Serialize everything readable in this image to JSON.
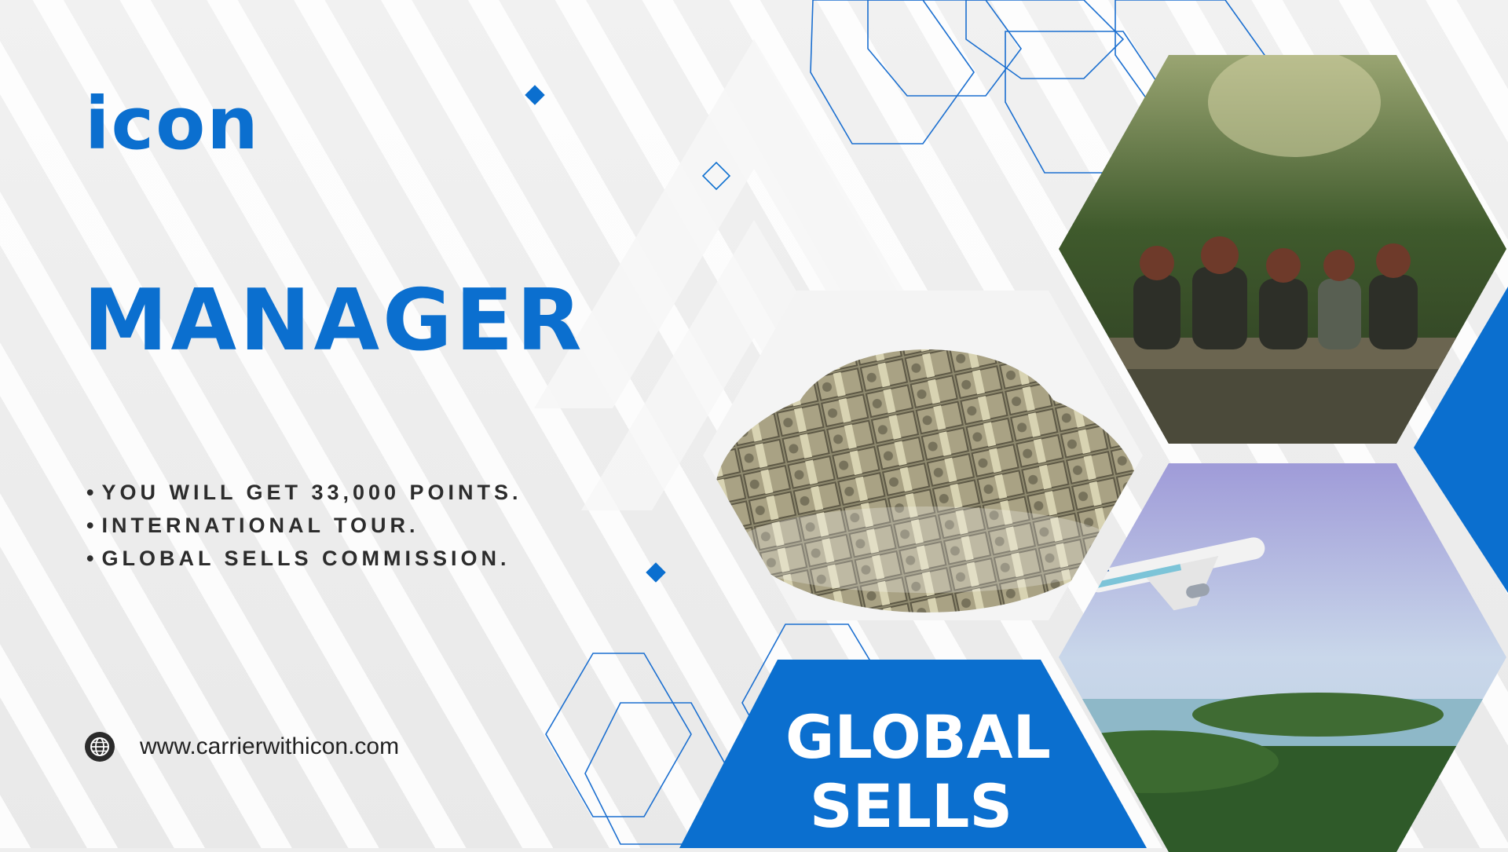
{
  "brand": {
    "logo_text": "icon"
  },
  "title": "MANAGER",
  "benefits": [
    "YOU WILL GET 33,000 POINTS.",
    "INTERNATIONAL TOUR.",
    "GLOBAL SELLS COMMISSION."
  ],
  "website": {
    "url": "www.carrierwithicon.com",
    "icon": "globe-icon"
  },
  "banner": {
    "line1": "GLOBAL",
    "line2": "SELLS"
  },
  "colors": {
    "brand_blue": "#0b6fcf",
    "text_dark": "#2c2c2c",
    "background": "#eeeeee"
  },
  "images": {
    "money": "pile-of-banknotes-photo",
    "friends": "friends-by-forest-stream-photo",
    "plane": "airplane-over-island-photo"
  }
}
